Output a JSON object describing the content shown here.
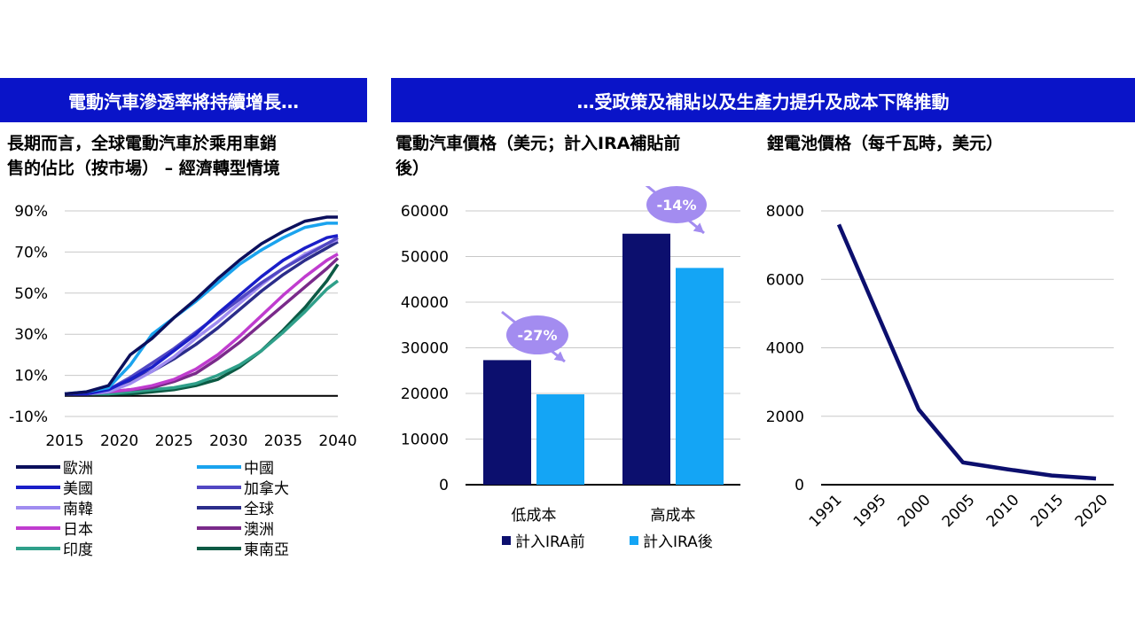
{
  "banners": {
    "left": "電動汽車滲透率將持續增長…",
    "right": "…受政策及補貼以及生產力提升及成本下降推動"
  },
  "colors": {
    "banner": "#0a14c8",
    "bar_before": "#0c0f6e",
    "bar_after": "#14a5f5",
    "bubble": "#a38cf0",
    "battery_line": "#0c0f6e"
  },
  "chart_data": [
    {
      "type": "line",
      "title": "長期而言，全球電動汽車於乘用車銷售的佔比（按市場）– 經濟轉型情境",
      "title_lines": [
        "長期而言，全球電動汽車於乘用車銷",
        "售的佔比（按市場） – 經濟轉型情境"
      ],
      "x": [
        2015,
        2017,
        2019,
        2021,
        2023,
        2025,
        2027,
        2029,
        2031,
        2033,
        2035,
        2037,
        2039,
        2040
      ],
      "xticks": [
        "2015",
        "2020",
        "2025",
        "2030",
        "2035",
        "2040"
      ],
      "yticks": [
        "-10%",
        "10%",
        "30%",
        "50%",
        "70%",
        "90%"
      ],
      "ylim": [
        -10,
        90
      ],
      "legend_position": "bottom",
      "series": [
        {
          "name": "歐洲",
          "color": "#0b0f5c",
          "values": [
            1,
            2,
            5,
            20,
            28,
            38,
            47,
            57,
            66,
            74,
            80,
            85,
            87,
            87
          ]
        },
        {
          "name": "中國",
          "color": "#1aa3ee",
          "values": [
            1,
            2,
            4,
            15,
            30,
            38,
            46,
            55,
            64,
            71,
            77,
            82,
            84,
            84
          ]
        },
        {
          "name": "美國",
          "color": "#1a1ec8",
          "values": [
            1,
            1,
            3,
            8,
            14,
            22,
            30,
            40,
            49,
            58,
            66,
            72,
            77,
            78
          ]
        },
        {
          "name": "加拿大",
          "color": "#5147c3",
          "values": [
            1,
            1,
            3,
            9,
            16,
            23,
            31,
            39,
            47,
            55,
            62,
            68,
            74,
            77
          ]
        },
        {
          "name": "南韓",
          "color": "#a08cf0",
          "values": [
            1,
            1,
            2,
            6,
            12,
            19,
            28,
            36,
            45,
            54,
            62,
            69,
            74,
            76
          ]
        },
        {
          "name": "全球",
          "color": "#2b2d8a",
          "values": [
            1,
            1,
            2,
            7,
            12,
            18,
            25,
            33,
            42,
            51,
            59,
            66,
            72,
            75
          ]
        },
        {
          "name": "日本",
          "color": "#c03ccf",
          "values": [
            1,
            1,
            2,
            3,
            5,
            8,
            13,
            20,
            29,
            39,
            49,
            58,
            66,
            69
          ]
        },
        {
          "name": "澳洲",
          "color": "#7a2a8a",
          "values": [
            1,
            1,
            2,
            3,
            4,
            7,
            11,
            18,
            26,
            35,
            44,
            53,
            62,
            67
          ]
        },
        {
          "name": "印度",
          "color": "#2fa08a",
          "values": [
            1,
            1,
            1,
            2,
            3,
            4,
            6,
            10,
            15,
            22,
            31,
            41,
            52,
            56
          ]
        },
        {
          "name": "東南亞",
          "color": "#0c5a44",
          "values": [
            1,
            1,
            1,
            1,
            2,
            3,
            5,
            8,
            14,
            22,
            32,
            43,
            56,
            64
          ]
        }
      ]
    },
    {
      "type": "bar",
      "title_lines": [
        "電動汽車價格（美元；計入IRA補貼前",
        "後）"
      ],
      "categories": [
        "低成本",
        "高成本"
      ],
      "yticks": [
        "0",
        "10000",
        "20000",
        "30000",
        "40000",
        "50000",
        "60000"
      ],
      "ylim": [
        0,
        60000
      ],
      "series": [
        {
          "name": "計入IRA前",
          "values": [
            27300,
            55000
          ]
        },
        {
          "name": "計入IRA後",
          "values": [
            19800,
            47500
          ]
        }
      ],
      "annotations": [
        "-27%",
        "-14%"
      ]
    },
    {
      "type": "line",
      "title_lines": [
        "鋰電池價格（每千瓦時，美元）"
      ],
      "x": [
        1991,
        2000,
        2005,
        2010,
        2015,
        2020
      ],
      "values": [
        7600,
        2200,
        650,
        450,
        270,
        180
      ],
      "xticks": [
        "1991",
        "1995",
        "2000",
        "2005",
        "2010",
        "2015",
        "2020"
      ],
      "yticks": [
        "0",
        "2000",
        "4000",
        "6000",
        "8000"
      ],
      "ylim": [
        0,
        8000
      ]
    }
  ]
}
